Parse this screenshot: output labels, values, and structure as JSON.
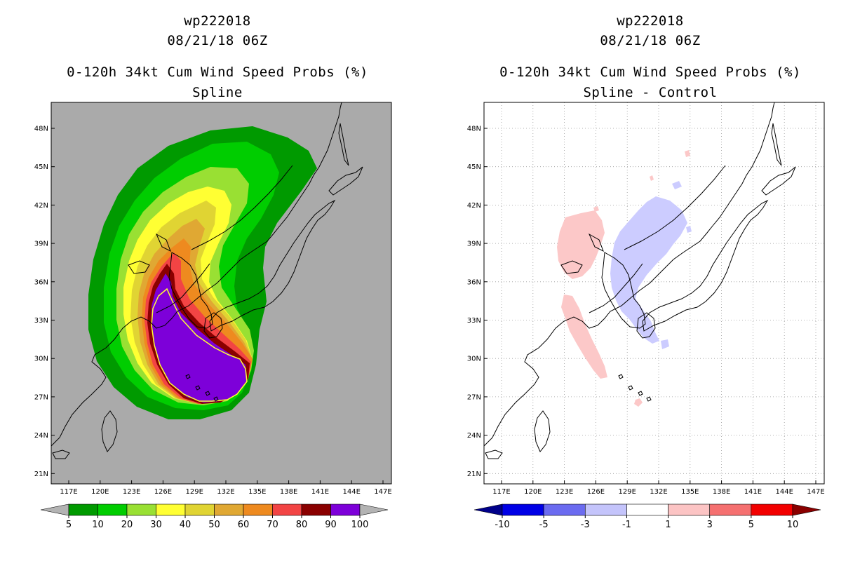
{
  "left": {
    "title_lines": [
      "wp222018",
      "08/21/18 06Z",
      "0-120h 34kt Cum Wind Speed Probs (%)",
      "Spline"
    ],
    "lat_labels": [
      "48N",
      "45N",
      "42N",
      "39N",
      "36N",
      "33N",
      "30N",
      "27N",
      "24N",
      "21N"
    ],
    "lon_labels": [
      "117E",
      "120E",
      "123E",
      "126E",
      "129E",
      "132E",
      "135E",
      "138E",
      "141E",
      "144E",
      "147E"
    ],
    "colorbar": {
      "labels": [
        "5",
        "10",
        "20",
        "30",
        "40",
        "50",
        "60",
        "70",
        "80",
        "90",
        "100"
      ],
      "colors": [
        "#009a00",
        "#00cd00",
        "#99e033",
        "#ffff33",
        "#e0d433",
        "#e0a833",
        "#ee8a1f",
        "#f24444",
        "#8a0000",
        "#7d00d9"
      ],
      "under_color": "#b3b3b3",
      "over_color": "#b3b3b3"
    },
    "background_color": "#aaaaaa"
  },
  "right": {
    "title_lines": [
      "wp222018",
      "08/21/18 06Z",
      "0-120h 34kt Cum Wind Speed Probs (%)",
      "Spline - Control"
    ],
    "lat_labels": [
      "48N",
      "45N",
      "42N",
      "39N",
      "36N",
      "33N",
      "30N",
      "27N",
      "24N",
      "21N"
    ],
    "lon_labels": [
      "117E",
      "120E",
      "123E",
      "126E",
      "129E",
      "132E",
      "135E",
      "138E",
      "141E",
      "144E",
      "147E"
    ],
    "colorbar": {
      "labels": [
        "-10",
        "-5",
        "-3",
        "-1",
        "1",
        "3",
        "5",
        "10"
      ],
      "colors": [
        "#0000e6",
        "#6b6bf0",
        "#c4c4fb",
        "#ffffff",
        "#fcc4c4",
        "#f57070",
        "#f20000"
      ],
      "under_color": "#00008a",
      "over_color": "#8a0000"
    },
    "neg_color": "#ccccff",
    "pos_color": "#fcc8c8"
  }
}
